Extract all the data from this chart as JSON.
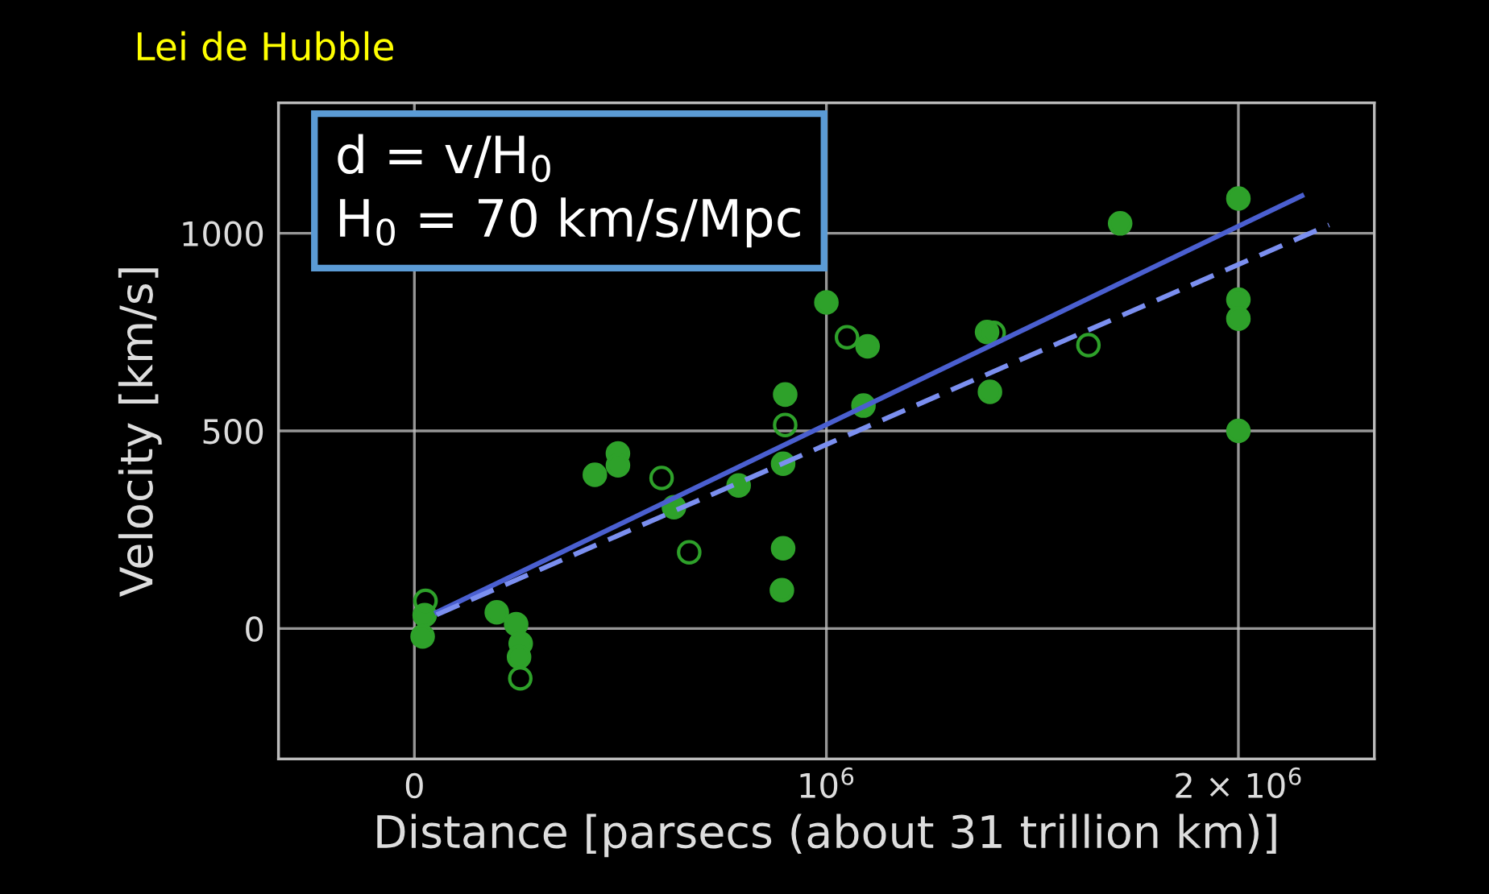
{
  "chart_data": {
    "type": "scatter",
    "title": "Lei de Hubble",
    "xlabel": "Distance [parsecs (about 31 trillion km)]",
    "ylabel": "Velocity [km/s]",
    "annotations": [
      "d = v/H$_{0}$",
      "H$_{0}$ = 70 km/s/Mpc"
    ],
    "xlim": [
      -330000,
      2330000
    ],
    "ylim": [
      -330,
      1330
    ],
    "xticks": [
      {
        "value": -330000,
        "label": null
      },
      0,
      {
        "value": 1000000,
        "label": "10$^{6}$"
      },
      {
        "value": 2000000,
        "label": "2 × 10$^{6}$"
      },
      {
        "value": 2330000,
        "label": null
      }
    ],
    "yticks": [
      {
        "value": -330,
        "label": null
      },
      0,
      500,
      1000,
      {
        "value": 1330,
        "label": null
      }
    ],
    "grid": true,
    "legend": false,
    "series": [
      {
        "color": "#2ea12a",
        "marker": "circle",
        "x": [
          1000000,
          1100000,
          900000,
          1090000,
          494000,
          494000,
          438000,
          630000,
          787000,
          895000,
          895000,
          892000,
          25000,
          20000,
          200000,
          247000,
          258000,
          254000,
          2000000,
          1713000,
          2000000,
          2000000,
          2000000,
          1390000,
          1397000
        ],
        "values": [
          825,
          714,
          592,
          564,
          443,
          413,
          389,
          307,
          362,
          417,
          203,
          97,
          34,
          -20,
          41,
          11,
          -38,
          -72,
          1088,
          1025,
          832,
          784,
          500,
          750,
          599
        ]
      },
      {
        "color": "#2ea12a",
        "marker": "circle",
        "x": [
          1050000,
          900000,
          600000,
          667000,
          27000,
          257000,
          1406000,
          1636000
        ],
        "values": [
          737,
          515,
          381,
          193,
          70,
          -126,
          748,
          717
        ]
      },
      {
        "type": "line",
        "color": "#4a5fd0",
        "line_style": "solid",
        "marker": "none",
        "x": [
          54000,
          2154000
        ],
        "values": [
          41,
          1095
        ]
      },
      {
        "type": "line",
        "color": "#7b8ff0",
        "line_style": "dashed",
        "marker": "none",
        "x": [
          54000,
          2220000
        ],
        "values": [
          35,
          1021
        ]
      }
    ]
  }
}
